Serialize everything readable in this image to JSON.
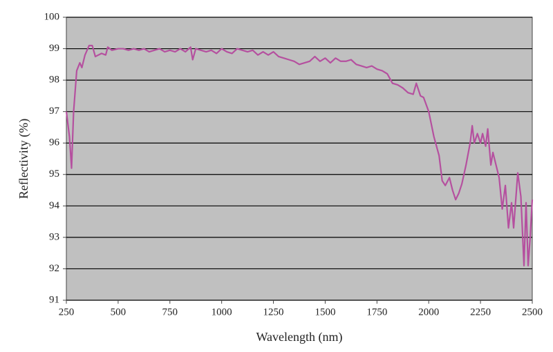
{
  "chart_data": {
    "type": "line",
    "x_label": "Wavelength (nm)",
    "y_label": "Reflectivity (%)",
    "x": [
      250,
      265,
      275,
      285,
      300,
      315,
      325,
      340,
      360,
      375,
      390,
      420,
      440,
      450,
      470,
      500,
      525,
      550,
      575,
      600,
      625,
      650,
      675,
      700,
      725,
      750,
      775,
      800,
      825,
      850,
      860,
      875,
      900,
      925,
      950,
      975,
      1000,
      1025,
      1050,
      1075,
      1100,
      1125,
      1150,
      1175,
      1200,
      1225,
      1250,
      1275,
      1300,
      1325,
      1350,
      1375,
      1400,
      1425,
      1450,
      1475,
      1500,
      1525,
      1550,
      1575,
      1600,
      1625,
      1650,
      1675,
      1700,
      1725,
      1750,
      1775,
      1800,
      1825,
      1850,
      1875,
      1900,
      1925,
      1940,
      1960,
      1975,
      2000,
      2025,
      2050,
      2065,
      2080,
      2100,
      2115,
      2130,
      2145,
      2160,
      2180,
      2200,
      2210,
      2220,
      2235,
      2250,
      2260,
      2275,
      2285,
      2300,
      2310,
      2325,
      2340,
      2355,
      2370,
      2385,
      2400,
      2410,
      2430,
      2445,
      2460,
      2470,
      2480,
      2490,
      2500
    ],
    "values": [
      97.0,
      96.2,
      95.2,
      97.0,
      98.3,
      98.55,
      98.4,
      98.8,
      99.1,
      99.1,
      98.75,
      98.85,
      98.8,
      99.05,
      98.95,
      99.0,
      99.0,
      98.95,
      99.0,
      98.95,
      99.0,
      98.9,
      98.95,
      99.0,
      98.9,
      98.95,
      98.9,
      99.0,
      98.9,
      99.05,
      98.65,
      99.0,
      98.95,
      98.9,
      98.95,
      98.85,
      99.0,
      98.9,
      98.85,
      99.0,
      98.95,
      98.9,
      98.95,
      98.8,
      98.9,
      98.8,
      98.9,
      98.75,
      98.7,
      98.65,
      98.6,
      98.5,
      98.55,
      98.6,
      98.75,
      98.6,
      98.7,
      98.55,
      98.7,
      98.6,
      98.6,
      98.65,
      98.5,
      98.45,
      98.4,
      98.45,
      98.35,
      98.3,
      98.2,
      97.9,
      97.85,
      97.75,
      97.6,
      97.55,
      97.9,
      97.5,
      97.45,
      97.0,
      96.2,
      95.6,
      94.8,
      94.65,
      94.9,
      94.5,
      94.2,
      94.4,
      94.7,
      95.3,
      96.0,
      96.55,
      96.0,
      96.3,
      96.0,
      96.3,
      95.9,
      96.45,
      95.3,
      95.7,
      95.3,
      94.9,
      93.9,
      94.65,
      93.3,
      94.1,
      93.3,
      95.05,
      94.3,
      92.1,
      94.1,
      92.1,
      93.0,
      94.2
    ],
    "color": "#b5509f",
    "xlim": [
      250,
      2500
    ],
    "xticks": [
      250,
      500,
      750,
      1000,
      1250,
      1500,
      1750,
      2000,
      2250,
      2500
    ],
    "ylim": [
      91,
      100
    ],
    "yticks": [
      91,
      92,
      93,
      94,
      95,
      96,
      97,
      98,
      99,
      100
    ],
    "grid": true,
    "plot_background": "#c0c0c0"
  }
}
